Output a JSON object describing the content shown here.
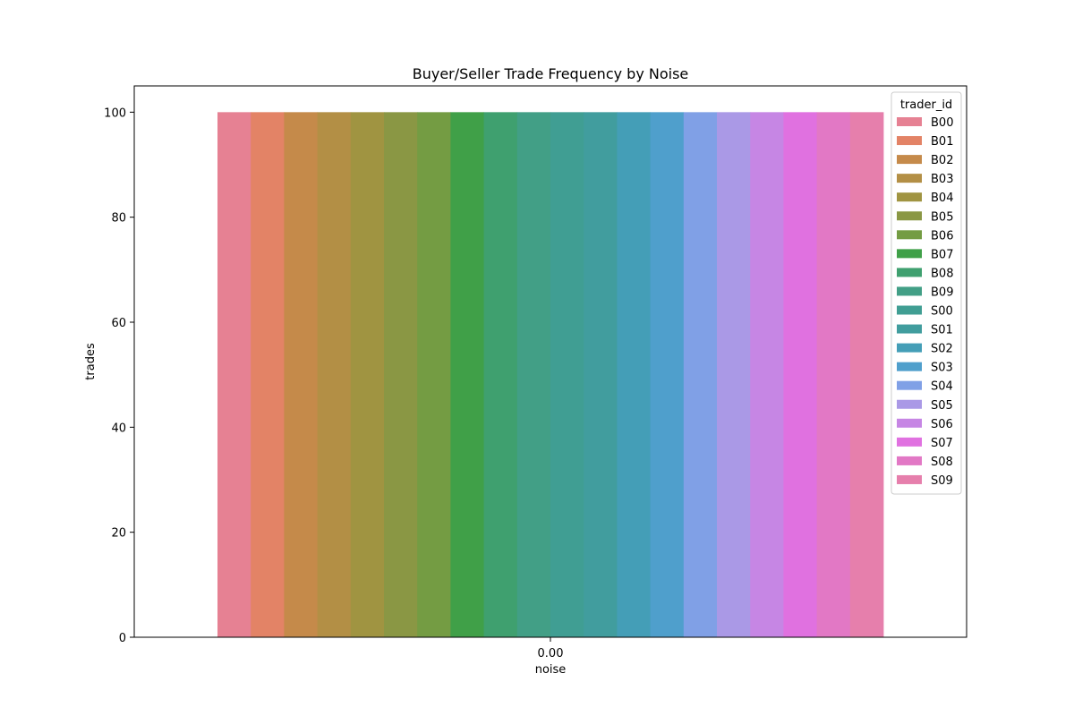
{
  "chart_data": {
    "type": "bar",
    "title": "Buyer/Seller Trade Frequency by Noise",
    "xlabel": "noise",
    "ylabel": "trades",
    "categories": [
      "0.00"
    ],
    "ylim": [
      0,
      105
    ],
    "yticks": [
      0,
      20,
      40,
      60,
      80,
      100
    ],
    "grid": false,
    "legend": {
      "title": "trader_id",
      "placement": "top-right"
    },
    "series": [
      {
        "name": "B00",
        "color": "#e68193",
        "values": [
          100
        ]
      },
      {
        "name": "B01",
        "color": "#e38366",
        "values": [
          100
        ]
      },
      {
        "name": "B02",
        "color": "#c58a4a",
        "values": [
          100
        ]
      },
      {
        "name": "B03",
        "color": "#b38f45",
        "values": [
          100
        ]
      },
      {
        "name": "B04",
        "color": "#a09441",
        "values": [
          100
        ]
      },
      {
        "name": "B05",
        "color": "#8a9744",
        "values": [
          100
        ]
      },
      {
        "name": "B06",
        "color": "#749c43",
        "values": [
          100
        ]
      },
      {
        "name": "B07",
        "color": "#40a048",
        "values": [
          100
        ]
      },
      {
        "name": "B08",
        "color": "#3fa06f",
        "values": [
          100
        ]
      },
      {
        "name": "B09",
        "color": "#429f86",
        "values": [
          100
        ]
      },
      {
        "name": "S00",
        "color": "#409e93",
        "values": [
          100
        ]
      },
      {
        "name": "S01",
        "color": "#419d9e",
        "values": [
          100
        ]
      },
      {
        "name": "S02",
        "color": "#449eb7",
        "values": [
          100
        ]
      },
      {
        "name": "S03",
        "color": "#4f9fcc",
        "values": [
          100
        ]
      },
      {
        "name": "S04",
        "color": "#80a0e6",
        "values": [
          100
        ]
      },
      {
        "name": "S05",
        "color": "#aa99e6",
        "values": [
          100
        ]
      },
      {
        "name": "S06",
        "color": "#c686e4",
        "values": [
          100
        ]
      },
      {
        "name": "S07",
        "color": "#e071e0",
        "values": [
          100
        ]
      },
      {
        "name": "S08",
        "color": "#e278c5",
        "values": [
          100
        ]
      },
      {
        "name": "S09",
        "color": "#e67fac",
        "values": [
          100
        ]
      }
    ]
  }
}
